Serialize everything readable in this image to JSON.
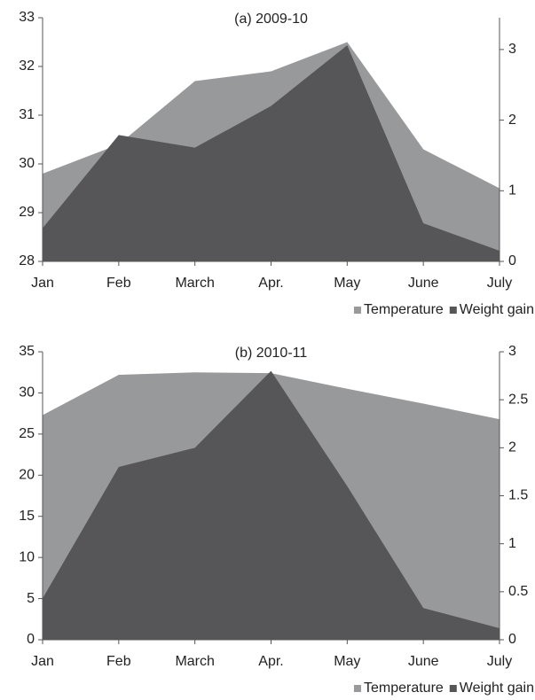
{
  "chart_data": [
    {
      "type": "area",
      "title": "(a) 2009-10",
      "categories": [
        "Jan",
        "Feb",
        "March",
        "Apr.",
        "May",
        "June",
        "July"
      ],
      "series": [
        {
          "name": "Temperature",
          "color": "#98999b",
          "values": [
            29.8,
            30.4,
            31.7,
            31.9,
            32.5,
            30.3,
            29.5
          ]
        },
        {
          "name": "Weight gain",
          "color": "#565658",
          "axis": "y2",
          "values": [
            0.47,
            1.79,
            1.61,
            2.2,
            3.06,
            0.54,
            0.15
          ]
        }
      ],
      "ylim": [
        28,
        33
      ],
      "yticks": [
        28,
        29,
        30,
        31,
        32,
        33
      ],
      "y2lim": [
        0,
        3.45
      ],
      "y2ticks": [
        0,
        1,
        2,
        3
      ],
      "legend": "bottom-right"
    },
    {
      "type": "area",
      "title": "(b) 2010-11",
      "categories": [
        "Jan",
        "Feb",
        "March",
        "Apr.",
        "May",
        "June",
        "July"
      ],
      "series": [
        {
          "name": "Temperature",
          "color": "#98999b",
          "values": [
            27.3,
            32.2,
            32.5,
            32.4,
            30.5,
            28.7,
            26.8
          ]
        },
        {
          "name": "Weight gain",
          "color": "#565658",
          "axis": "y2",
          "values": [
            0.43,
            1.8,
            2.0,
            2.8,
            1.6,
            0.33,
            0.12
          ]
        }
      ],
      "ylim": [
        0,
        35
      ],
      "yticks": [
        0,
        5,
        10,
        15,
        20,
        25,
        30,
        35
      ],
      "y2lim": [
        0,
        3
      ],
      "y2ticks": [
        0,
        0.5,
        1,
        1.5,
        2,
        2.5,
        3
      ],
      "legend": "bottom-right"
    }
  ]
}
